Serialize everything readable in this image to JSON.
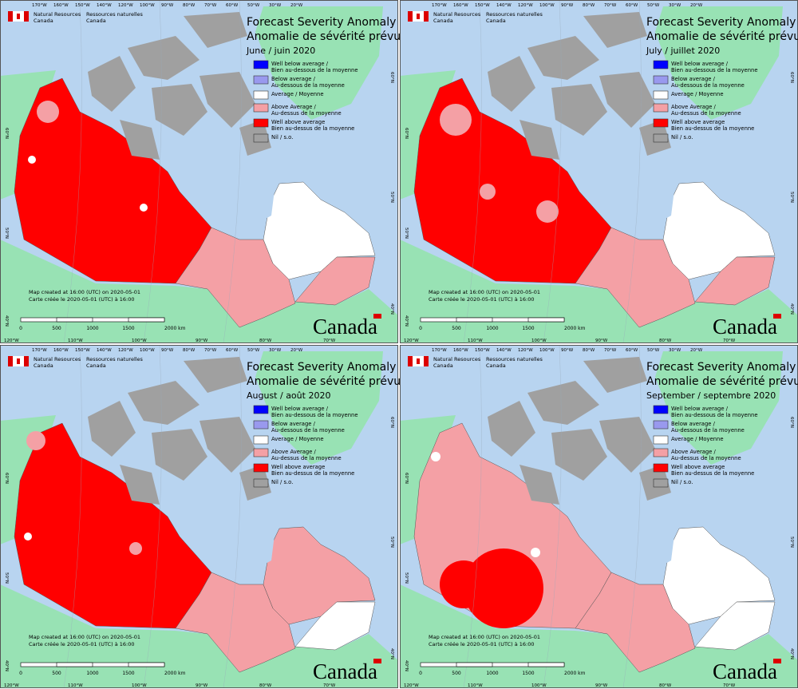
{
  "agency": {
    "en": "Natural Resources",
    "en2": "Canada",
    "fr": "Ressources naturelles",
    "fr2": "Canada"
  },
  "title_en": "Forecast Severity Anomaly",
  "title_fr": "Anomalie de sévérité prévue",
  "panels": [
    {
      "month": "June / juin 2020"
    },
    {
      "month": "July / juillet 2020"
    },
    {
      "month": "August / août 2020"
    },
    {
      "month": "September / septembre 2020"
    }
  ],
  "legend": [
    {
      "lines": [
        "Well below average /",
        "Bien au-dessous de la moyenne"
      ],
      "color": "#0000ff"
    },
    {
      "lines": [
        "Below average /",
        "Au-dessous de la moyenne"
      ],
      "color": "#9999ee"
    },
    {
      "lines": [
        "Average / Moyenne"
      ],
      "color": "#ffffff"
    },
    {
      "lines": [
        "Above Average /",
        "Au-dessus de la moyenne"
      ],
      "color": "#f4a0a5"
    },
    {
      "lines": [
        "Well above average",
        "Bien au-dessus de la moyenne"
      ],
      "color": "#ff0000"
    },
    {
      "lines": [
        "Nil / s.o."
      ],
      "color": "#a0a0a0"
    }
  ],
  "notes": [
    "Map created at 16:00 (UTC) on 2020-05-01",
    "Carte créée le 2020-05-01 (UTC) à 16:00"
  ],
  "scale": [
    "0",
    "500",
    "1000",
    "1500",
    "2000  km"
  ],
  "wordmark": "Canada",
  "graticule": {
    "top": [
      "170°W",
      "160°W",
      "150°W",
      "140°W",
      "120°W",
      "100°W",
      "90°W",
      "80°W",
      "70°W",
      "60°W",
      "50°W",
      "30°W",
      "20°W"
    ],
    "bottom": [
      "120°W",
      "110°W",
      "100°W",
      "90°W",
      "80°W",
      "70°W"
    ],
    "left": [
      "60°N",
      "50°N",
      "40°N"
    ],
    "right": [
      "60°N",
      "50°N",
      "40°N"
    ]
  }
}
